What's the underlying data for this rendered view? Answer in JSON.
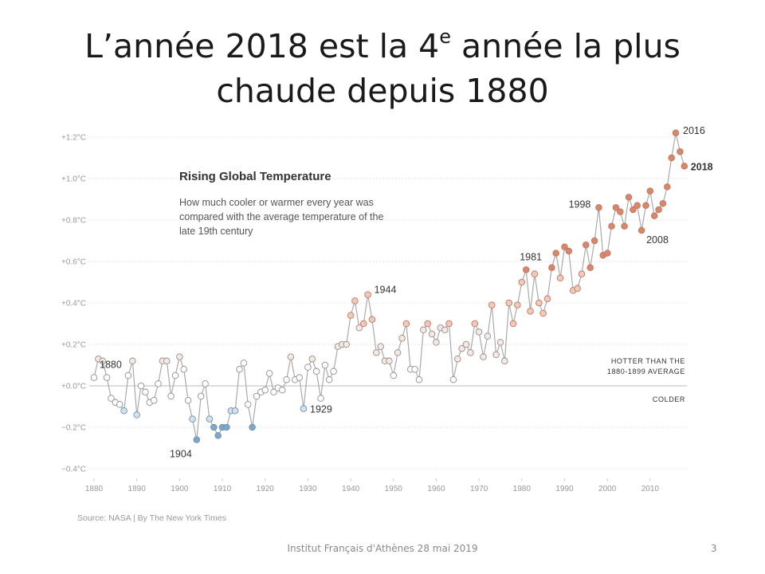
{
  "slide": {
    "title_part1": "L’année 2018 est la 4",
    "title_sup": "e",
    "title_part2": " année la plus",
    "title_line2": "chaude depuis 1880",
    "footer": "Institut Français d'Athènes 28 mai 2019",
    "page_number": "3"
  },
  "chart_data": {
    "type": "scatter",
    "title": "Rising Global Temperature",
    "subtitle": "How much cooler or warmer every year was compared with the average temperature of the late 19th century",
    "source": "Source: NASA | By The New York Times",
    "y_unit": "°C",
    "ylim": [
      -0.4,
      1.2
    ],
    "xlim": [
      1880,
      2018
    ],
    "y_ticks": [
      "+1.2°C",
      "+1.0°C",
      "+0.8°C",
      "+0.6°C",
      "+0.4°C",
      "+0.2°C",
      "+0.0°C",
      "−0.2°C",
      "−0.4°C"
    ],
    "x_ticks": [
      "1880",
      "1890",
      "1900",
      "1910",
      "1920",
      "1930",
      "1940",
      "1950",
      "1960",
      "1970",
      "1980",
      "1990",
      "2000",
      "2010"
    ],
    "grid": "horizontal",
    "baseline_labels": {
      "above_1": "HOTTER THAN THE",
      "above_2": "1880-1899 AVERAGE",
      "below": "COLDER"
    },
    "annotations": [
      "1880",
      "1904",
      "1929",
      "1944",
      "1981",
      "1998",
      "2008",
      "2016",
      "2018"
    ],
    "colors": {
      "warm": "#d9866a",
      "cool": "#7ea7c9",
      "line": "#aaaaaa",
      "neutral": "#ffffff"
    },
    "years_start": 1880,
    "values": [
      0.04,
      0.13,
      0.12,
      0.04,
      -0.06,
      -0.08,
      -0.09,
      -0.12,
      0.05,
      0.12,
      -0.14,
      0.0,
      -0.03,
      -0.08,
      -0.07,
      0.01,
      0.12,
      0.12,
      -0.05,
      0.05,
      0.14,
      0.08,
      -0.07,
      -0.16,
      -0.26,
      -0.05,
      0.01,
      -0.16,
      -0.2,
      -0.24,
      -0.2,
      -0.2,
      -0.12,
      -0.12,
      0.08,
      0.11,
      -0.09,
      -0.2,
      -0.05,
      -0.03,
      -0.02,
      0.06,
      -0.03,
      -0.01,
      -0.02,
      0.03,
      0.14,
      0.03,
      0.04,
      -0.11,
      0.09,
      0.13,
      0.07,
      -0.06,
      0.1,
      0.03,
      0.07,
      0.19,
      0.2,
      0.2,
      0.34,
      0.41,
      0.28,
      0.3,
      0.44,
      0.32,
      0.16,
      0.19,
      0.12,
      0.12,
      0.05,
      0.16,
      0.23,
      0.3,
      0.08,
      0.08,
      0.03,
      0.27,
      0.3,
      0.25,
      0.21,
      0.28,
      0.27,
      0.3,
      0.03,
      0.13,
      0.18,
      0.2,
      0.16,
      0.3,
      0.26,
      0.14,
      0.24,
      0.39,
      0.15,
      0.21,
      0.12,
      0.4,
      0.3,
      0.39,
      0.5,
      0.56,
      0.36,
      0.54,
      0.4,
      0.35,
      0.42,
      0.57,
      0.64,
      0.52,
      0.67,
      0.65,
      0.46,
      0.47,
      0.54,
      0.68,
      0.57,
      0.7,
      0.86,
      0.63,
      0.64,
      0.77,
      0.86,
      0.84,
      0.77,
      0.91,
      0.85,
      0.87,
      0.75,
      0.87,
      0.94,
      0.82,
      0.85,
      0.88,
      0.96,
      1.1,
      1.22,
      1.13,
      1.06
    ]
  }
}
